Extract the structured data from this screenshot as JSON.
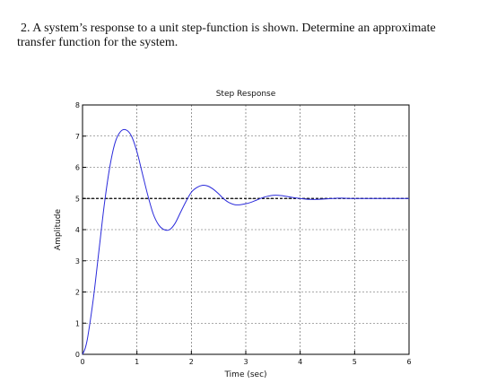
{
  "question": {
    "number": "2.",
    "text": "A system’s response to a unit step-function is shown. Determine an approximate transfer function for the system."
  },
  "chart_data": {
    "type": "line",
    "title": "Step Response",
    "xlabel": "Time (sec)",
    "ylabel": "Amplitude",
    "xlim": [
      0,
      6
    ],
    "ylim": [
      0,
      8
    ],
    "xticks": [
      "0",
      "1",
      "2",
      "3",
      "4",
      "5",
      "6"
    ],
    "yticks": [
      "0",
      "1",
      "2",
      "3",
      "4",
      "5",
      "6",
      "7",
      "8"
    ],
    "grid": true,
    "reference_line": 5,
    "line_color": "#2b2bdb",
    "series": [
      {
        "x": [
          0,
          0.05,
          0.1,
          0.2,
          0.3,
          0.4,
          0.5,
          0.6,
          0.7,
          0.8,
          0.9,
          1.0,
          1.1,
          1.2,
          1.3,
          1.4,
          1.5,
          1.6,
          1.7,
          1.8,
          1.9,
          2.0,
          2.1,
          2.2,
          2.3,
          2.4,
          2.5,
          2.6,
          2.7,
          2.8,
          2.9,
          3.0,
          3.1,
          3.2,
          3.3,
          3.4,
          3.5,
          3.6,
          3.7,
          3.8,
          3.9,
          4.0,
          4.1,
          4.2,
          4.3,
          4.4,
          4.5,
          4.6,
          4.7,
          4.8,
          4.9,
          5.0,
          5.2,
          5.4,
          5.6,
          5.8,
          6.0
        ],
        "values": [
          0,
          0.2,
          0.6,
          1.8,
          3.3,
          4.8,
          6.0,
          6.8,
          7.15,
          7.2,
          7.0,
          6.5,
          5.8,
          5.1,
          4.5,
          4.15,
          4.0,
          4.0,
          4.2,
          4.55,
          4.9,
          5.2,
          5.35,
          5.42,
          5.4,
          5.3,
          5.15,
          4.98,
          4.86,
          4.8,
          4.8,
          4.83,
          4.88,
          4.95,
          5.02,
          5.07,
          5.1,
          5.1,
          5.08,
          5.05,
          5.02,
          5.0,
          4.98,
          4.97,
          4.97,
          4.98,
          4.99,
          5.0,
          5.01,
          5.01,
          5.0,
          5.0,
          5.0,
          5.0,
          5.0,
          5.0,
          5.0
        ]
      }
    ]
  }
}
